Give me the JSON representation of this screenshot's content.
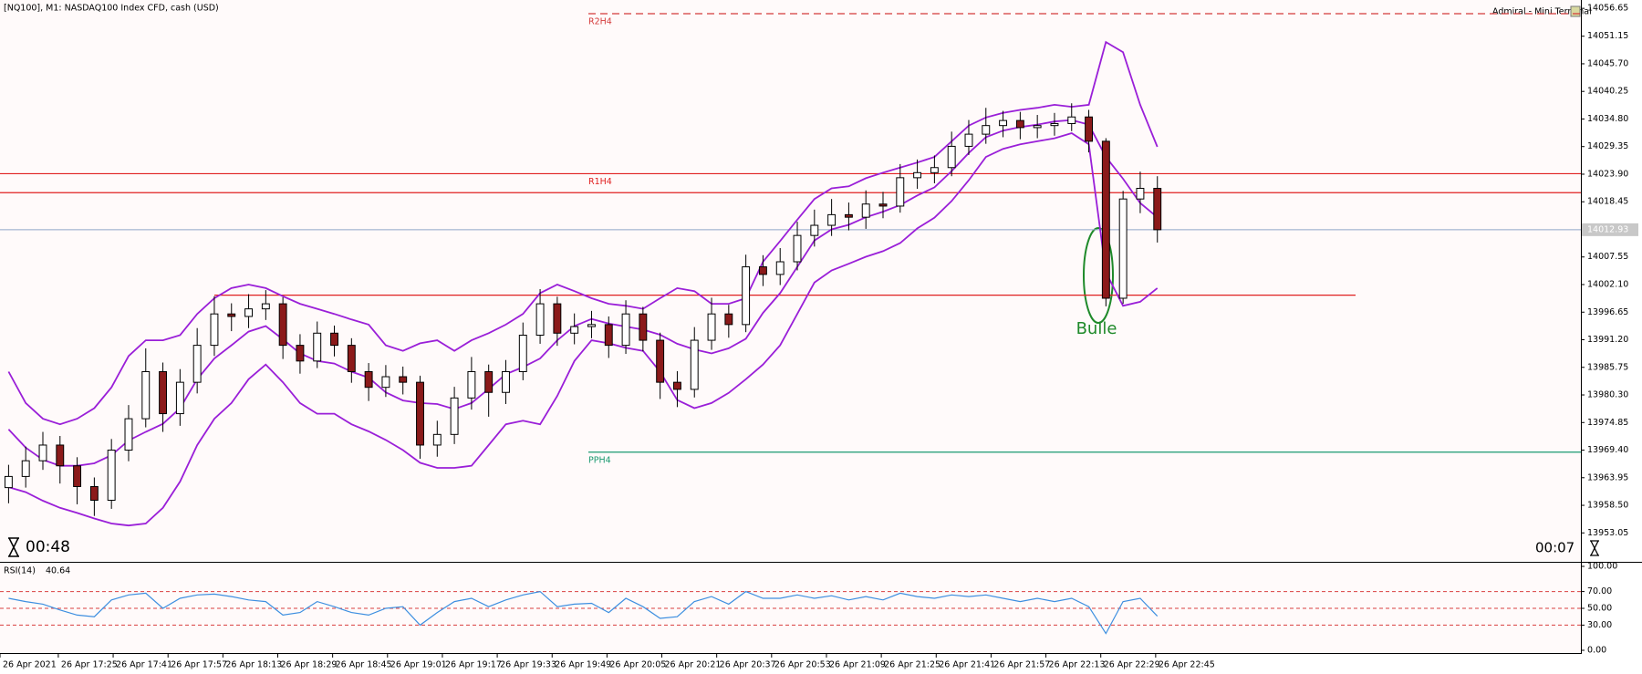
{
  "ui": {
    "terminal": "Admiral - Mini Terminal",
    "timer_left": "00:48",
    "timer_right": "00:07"
  },
  "chart_data": [
    {
      "type": "candlestick",
      "title": "[NQ100], M1: NASDAQ100 Index CFD, cash (USD)",
      "annotations": [
        "Bulle"
      ],
      "up_color": "#ffffff",
      "down_color": "#8b1a1a",
      "wick_color": "#000000",
      "candles": {
        "open": [
          13962.0,
          13964.2,
          13967.3,
          13970.4,
          13966.3,
          13962.2,
          13959.5,
          13969.4,
          13975.6,
          13984.9,
          13976.6,
          13982.8,
          13990.1,
          13996.3,
          13995.8,
          13997.3,
          13998.3,
          13990.1,
          13987.0,
          13992.5,
          13990.1,
          13984.9,
          13981.8,
          13983.9,
          13982.8,
          13970.4,
          13972.5,
          13979.7,
          13984.9,
          13980.8,
          13984.9,
          13992.1,
          13998.3,
          13992.5,
          13993.8,
          13994.2,
          13990.1,
          13996.3,
          13991.1,
          13982.8,
          13981.4,
          13991.1,
          13996.3,
          13994.2,
          14005.6,
          14004.1,
          14006.6,
          14011.8,
          14013.8,
          14015.9,
          14015.4,
          14018.0,
          14017.6,
          14023.2,
          14024.2,
          14025.2,
          14029.4,
          14031.8,
          14033.5,
          14034.5,
          14033.1,
          14033.5,
          14033.9,
          14035.2,
          14030.4,
          13999.4,
          14019.0,
          14021.1
        ],
        "high": [
          13966.5,
          13970.1,
          13973.0,
          13972.2,
          13968.0,
          13964.0,
          13971.6,
          13978.3,
          13989.5,
          13986.7,
          13985.4,
          13993.5,
          13999.8,
          13998.4,
          14000.2,
          14001.0,
          13999.6,
          13992.3,
          13994.8,
          13994.0,
          13991.5,
          13986.6,
          13986.2,
          13985.9,
          13984.1,
          13975.2,
          13981.9,
          13987.8,
          13986.3,
          13987.2,
          13994.6,
          14001.2,
          13999.7,
          13996.4,
          13996.9,
          13995.8,
          13999.0,
          13997.7,
          13992.6,
          13985.0,
          13993.7,
          13999.5,
          13998.1,
          14008.0,
          14007.9,
          14009.3,
          14014.5,
          14016.9,
          14019.0,
          14018.3,
          14020.7,
          14020.4,
          14025.9,
          14026.8,
          14027.6,
          14032.3,
          14034.6,
          14037.0,
          14036.4,
          14036.2,
          14035.6,
          14036.0,
          14037.9,
          14036.6,
          14031.0,
          14020.6,
          14024.4,
          14023.5
        ],
        "low": [
          13958.9,
          13962.0,
          13965.5,
          13962.8,
          13958.7,
          13956.4,
          13957.8,
          13967.2,
          13973.9,
          13973.0,
          13974.2,
          13980.6,
          13988.0,
          13992.9,
          13993.5,
          13995.1,
          13987.4,
          13984.5,
          13985.6,
          13987.9,
          13982.7,
          13979.1,
          13979.9,
          13980.4,
          13967.7,
          13968.1,
          13970.6,
          13977.4,
          13976.0,
          13978.5,
          13983.2,
          13990.4,
          13990.0,
          13990.3,
          13991.5,
          13987.6,
          13988.4,
          13988.9,
          13979.5,
          13977.9,
          13979.8,
          13989.2,
          13991.6,
          13992.7,
          14001.8,
          14002.0,
          14004.9,
          14009.6,
          14011.7,
          14012.8,
          14013.1,
          14015.2,
          14016.3,
          14021.0,
          14022.1,
          14023.5,
          14027.7,
          14029.9,
          14031.2,
          14030.8,
          14031.0,
          14031.5,
          14032.4,
          14028.2,
          13997.8,
          13998.3,
          14016.2,
          14010.4
        ],
        "close": [
          13964.2,
          13967.3,
          13970.4,
          13966.3,
          13962.2,
          13959.5,
          13969.4,
          13975.6,
          13984.9,
          13976.6,
          13982.8,
          13990.1,
          13996.3,
          13995.8,
          13997.3,
          13998.3,
          13990.1,
          13987.0,
          13992.5,
          13990.1,
          13984.9,
          13981.8,
          13983.9,
          13982.8,
          13970.4,
          13972.5,
          13979.7,
          13984.9,
          13980.8,
          13984.9,
          13992.1,
          13998.3,
          13992.5,
          13993.8,
          13994.2,
          13990.1,
          13996.3,
          13991.1,
          13982.8,
          13981.4,
          13991.1,
          13996.3,
          13994.2,
          14005.6,
          14004.1,
          14006.6,
          14011.8,
          14013.8,
          14015.9,
          14015.4,
          14018.0,
          14017.6,
          14023.2,
          14024.2,
          14025.2,
          14029.4,
          14031.8,
          14033.5,
          14034.5,
          14033.1,
          14033.5,
          14033.9,
          14035.2,
          14030.4,
          13999.4,
          14019.0,
          14021.1,
          14012.93
        ]
      },
      "series": [
        {
          "color": "#9a1fd8",
          "values": [
            13984.9,
            13978.7,
            13975.6,
            13974.5,
            13975.6,
            13977.7,
            13981.8,
            13988.0,
            13991.1,
            13991.1,
            13992.1,
            13996.3,
            13999.4,
            14001.4,
            14002.1,
            14001.4,
            13999.8,
            13998.3,
            13997.3,
            13996.3,
            13995.2,
            13994.2,
            13990.1,
            13989.0,
            13990.5,
            13991.1,
            13989.0,
            13991.1,
            13992.5,
            13994.2,
            13996.3,
            14000.4,
            14002.1,
            14000.8,
            13999.4,
            13998.3,
            13997.9,
            13997.3,
            13999.4,
            14001.4,
            14000.8,
            13998.3,
            13998.3,
            13999.4,
            14006.6,
            14010.7,
            14014.9,
            14019.0,
            14021.1,
            14021.5,
            14023.1,
            14024.2,
            14025.2,
            14026.2,
            14027.3,
            14030.4,
            14033.5,
            14035.1,
            14036.0,
            14036.6,
            14037.0,
            14037.6,
            14037.2,
            14037.6,
            14050.0,
            14048.0,
            14037.6,
            14029.3
          ]
        },
        {
          "color": "#9a1fd8",
          "values": [
            13973.5,
            13969.9,
            13967.5,
            13966.3,
            13966.3,
            13966.8,
            13968.4,
            13971.3,
            13973.0,
            13974.6,
            13977.7,
            13983.4,
            13987.5,
            13990.1,
            13992.8,
            13993.9,
            13991.3,
            13988.5,
            13987.0,
            13986.5,
            13984.9,
            13983.7,
            13980.8,
            13979.2,
            13978.7,
            13978.5,
            13977.5,
            13978.7,
            13981.5,
            13984.4,
            13985.8,
            13987.5,
            13991.1,
            13993.9,
            13995.3,
            13994.4,
            13993.8,
            13993.2,
            13992.2,
            13990.4,
            13989.3,
            13988.5,
            13989.5,
            13991.4,
            13996.5,
            14000.4,
            14005.6,
            14010.8,
            14013.0,
            14013.9,
            14015.4,
            14016.5,
            14017.8,
            14019.7,
            14021.3,
            14024.5,
            14028.1,
            14031.2,
            14032.5,
            14033.2,
            14033.7,
            14034.3,
            14034.6,
            14033.7,
            14027.3,
            14023.0,
            14018.2,
            14015.4
          ]
        },
        {
          "color": "#9a1fd8",
          "values": [
            13962.1,
            13961.1,
            13959.4,
            13958.0,
            13957.0,
            13955.9,
            13954.9,
            13954.5,
            13954.9,
            13958.0,
            13963.2,
            13970.4,
            13975.6,
            13978.7,
            13983.4,
            13986.3,
            13982.8,
            13978.7,
            13976.6,
            13976.6,
            13974.5,
            13973.1,
            13971.4,
            13969.4,
            13966.9,
            13965.9,
            13965.9,
            13966.3,
            13970.4,
            13974.5,
            13975.2,
            13974.5,
            13980.1,
            13987.0,
            13991.1,
            13990.5,
            13989.6,
            13989.0,
            13984.9,
            13979.3,
            13977.7,
            13978.7,
            13980.7,
            13983.4,
            13986.3,
            13990.1,
            13996.3,
            14002.5,
            14004.9,
            14006.2,
            14007.6,
            14008.7,
            14010.3,
            14013.2,
            14015.3,
            14018.6,
            14022.7,
            14027.3,
            14028.9,
            14029.8,
            14030.4,
            14031.0,
            14032.0,
            14029.8,
            14004.5,
            13997.9,
            13998.7,
            14001.4
          ]
        }
      ],
      "levels": [
        {
          "label": "R2H4",
          "value": 14055.6,
          "color": "#d43a3a",
          "dashed": true
        },
        {
          "label": "R1H4",
          "value": 14024.0,
          "color": "#e02020",
          "dashed": false
        },
        {
          "value": 14020.25,
          "color": "#e02020",
          "dashed": false
        },
        {
          "value": 14000.0,
          "color": "#e02020",
          "dashed": false
        },
        {
          "label": "PPH4",
          "value": 13969.0,
          "color": "#1a9a70",
          "dashed": false
        }
      ],
      "last_price_color": "#8fa6c8",
      "xlim": [
        -0.5,
        91.7
      ],
      "xticks": [
        {
          "value": -0.5,
          "label": "26 Apr 2021"
        },
        {
          "value": 2.9,
          "label": "26 Apr 17:25"
        },
        {
          "value": 6.1,
          "label": "26 Apr 17:41"
        },
        {
          "value": 9.3,
          "label": "26 Apr 17:57"
        },
        {
          "value": 12.5,
          "label": "26 Apr 18:13"
        },
        {
          "value": 15.7,
          "label": "26 Apr 18:29"
        },
        {
          "value": 18.9,
          "label": "26 Apr 18:45"
        },
        {
          "value": 22.1,
          "label": "26 Apr 19:01"
        },
        {
          "value": 25.3,
          "label": "26 Apr 19:17"
        },
        {
          "value": 28.5,
          "label": "26 Apr 19:33"
        },
        {
          "value": 31.7,
          "label": "26 Apr 19:49"
        },
        {
          "value": 34.9,
          "label": "26 Apr 20:05"
        },
        {
          "value": 38.1,
          "label": "26 Apr 20:21"
        },
        {
          "value": 41.3,
          "label": "26 Apr 20:37"
        },
        {
          "value": 44.5,
          "label": "26 Apr 20:53"
        },
        {
          "value": 47.7,
          "label": "26 Apr 21:09"
        },
        {
          "value": 50.9,
          "label": "26 Apr 21:25"
        },
        {
          "value": 54.1,
          "label": "26 Apr 21:41"
        },
        {
          "value": 57.3,
          "label": "26 Apr 21:57"
        },
        {
          "value": 60.5,
          "label": "26 Apr 22:13"
        },
        {
          "value": 63.7,
          "label": "26 Apr 22:29"
        },
        {
          "value": 66.9,
          "label": "26 Apr 22:45"
        }
      ],
      "ylim": [
        13947.7,
        14058.3
      ],
      "yticks": [
        14056.65,
        14051.15,
        {
          "value": 14045.7,
          "label": "14045.70"
        },
        14040.25,
        {
          "value": 14034.8,
          "label": "14034.80"
        },
        14029.35,
        {
          "value": 14023.9,
          "label": "14023.90"
        },
        14018.45,
        14007.55,
        {
          "value": 14002.1,
          "label": "14002.10"
        },
        13996.65,
        {
          "value": 13991.2,
          "label": "13991.20"
        },
        13985.75,
        {
          "value": 13980.3,
          "label": "13980.30"
        },
        13974.85,
        {
          "value": 13969.4,
          "label": "13969.40"
        },
        13963.95,
        {
          "value": 13958.5,
          "label": "13958.50"
        },
        13953.05
      ]
    },
    {
      "type": "line",
      "title": "RSI(14)",
      "color": "#3d8fe0",
      "values": [
        62,
        58,
        55,
        48,
        42,
        40,
        60,
        66,
        68,
        50,
        62,
        66,
        67,
        64,
        60,
        58,
        42,
        45,
        58,
        52,
        45,
        42,
        50,
        52,
        30,
        45,
        58,
        62,
        52,
        60,
        66,
        70,
        52,
        55,
        56,
        45,
        62,
        52,
        38,
        40,
        58,
        64,
        55,
        70,
        62,
        62,
        66,
        62,
        65,
        60,
        64,
        60,
        68,
        64,
        62,
        66,
        64,
        66,
        62,
        58,
        62,
        58,
        62,
        52,
        20,
        58,
        62,
        40.64
      ],
      "grid": "dashed",
      "grid_color": "#d94040",
      "ylim": [
        0,
        100
      ],
      "yticks": [
        {
          "value": 100,
          "label": "100.00"
        },
        {
          "value": 70,
          "label": "70.00"
        },
        {
          "value": 50,
          "label": "50.00"
        },
        {
          "value": 30,
          "label": "30.00"
        },
        {
          "value": 0,
          "label": "0.00"
        }
      ]
    }
  ]
}
